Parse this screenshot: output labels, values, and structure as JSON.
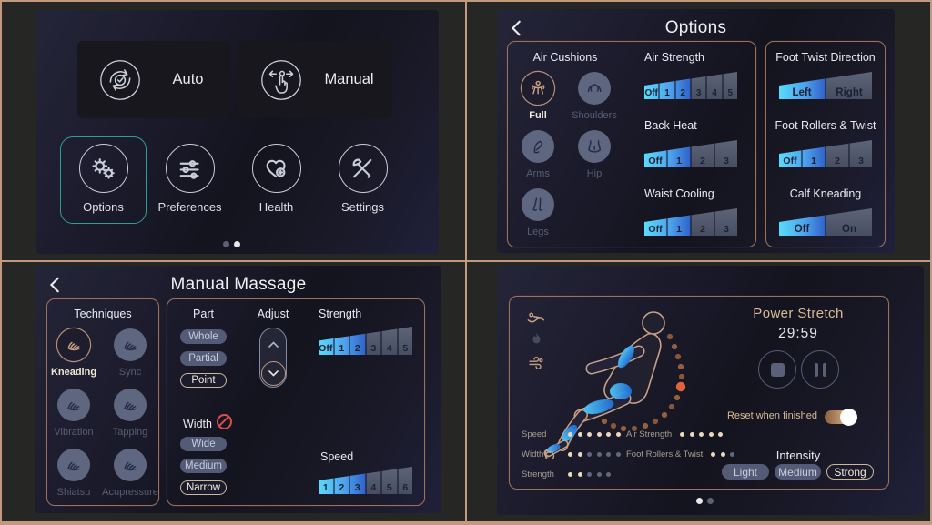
{
  "home": {
    "auto": {
      "label": "Auto",
      "icon": "auto-icon"
    },
    "manual": {
      "label": "Manual",
      "icon": "manual-icon"
    },
    "menu": [
      {
        "label": "Options",
        "icon": "gears-icon",
        "selected": true
      },
      {
        "label": "Preferences",
        "icon": "sliders-icon",
        "selected": false
      },
      {
        "label": "Health",
        "icon": "heart-plus-icon",
        "selected": false
      },
      {
        "label": "Settings",
        "icon": "tools-icon",
        "selected": false
      }
    ],
    "page_dots": {
      "count": 2,
      "active": 1
    }
  },
  "options": {
    "title": "Options",
    "air_cushions": {
      "title": "Air Cushions",
      "items": [
        {
          "label": "Full",
          "icon": "full-body-icon",
          "selected": true
        },
        {
          "label": "Shoulders",
          "icon": "shoulders-icon",
          "selected": false
        },
        {
          "label": "Arms",
          "icon": "arm-icon",
          "selected": false
        },
        {
          "label": "Hip",
          "icon": "hip-icon",
          "selected": false
        },
        {
          "label": "Legs",
          "icon": "legs-icon",
          "selected": false
        }
      ]
    },
    "middle_sliders": [
      {
        "label": "Air Strength",
        "segments": [
          "Off",
          "1",
          "2",
          "3",
          "4",
          "5"
        ],
        "filled": 3
      },
      {
        "label": "Back Heat",
        "segments": [
          "Off",
          "1",
          "2",
          "3"
        ],
        "filled": 2
      },
      {
        "label": "Waist Cooling",
        "segments": [
          "Off",
          "1",
          "2",
          "3"
        ],
        "filled": 2
      }
    ],
    "right_sliders": [
      {
        "label": "Foot Twist Direction",
        "segments": [
          "Left",
          "Right"
        ],
        "filled": 1
      },
      {
        "label": "Foot Rollers & Twist",
        "segments": [
          "Off",
          "1",
          "2",
          "3"
        ],
        "filled": 2
      },
      {
        "label": "Calf Kneading",
        "segments": [
          "Off",
          "On"
        ],
        "filled": 1
      }
    ]
  },
  "manual_massage": {
    "title": "Manual Massage",
    "techniques": {
      "title": "Techniques",
      "items": [
        {
          "label": "Kneading",
          "icon": "kneading-hands-icon",
          "selected": true
        },
        {
          "label": "Sync",
          "icon": "sync-hands-icon",
          "selected": false
        },
        {
          "label": "Vibration",
          "icon": "vibration-hands-icon",
          "selected": false
        },
        {
          "label": "Tapping",
          "icon": "tapping-hands-icon",
          "selected": false
        },
        {
          "label": "Shiatsu",
          "icon": "shiatsu-hands-icon",
          "selected": false
        },
        {
          "label": "Acupressure",
          "icon": "acupressure-hands-icon",
          "selected": false
        }
      ]
    },
    "part": {
      "title": "Part",
      "options": [
        {
          "label": "Whole",
          "selected": false
        },
        {
          "label": "Partial",
          "selected": false
        },
        {
          "label": "Point",
          "selected": true
        }
      ]
    },
    "adjust": {
      "title": "Adjust"
    },
    "strength": {
      "label": "Strength",
      "segments": [
        "Off",
        "1",
        "2",
        "3",
        "4",
        "5"
      ],
      "filled": 3
    },
    "width": {
      "title": "Width",
      "disabled": true,
      "options": [
        {
          "label": "Wide",
          "selected": false
        },
        {
          "label": "Medium",
          "selected": false
        },
        {
          "label": "Narrow",
          "selected": true
        }
      ]
    },
    "speed": {
      "label": "Speed",
      "segments": [
        "1",
        "2",
        "3",
        "4",
        "5",
        "6"
      ],
      "filled": 3
    }
  },
  "power_stretch": {
    "title": "Power Stretch",
    "timer": "29:59",
    "reset": {
      "label": "Reset when finished",
      "on": true
    },
    "intensity": {
      "title": "Intensity",
      "options": [
        {
          "label": "Light",
          "selected": false
        },
        {
          "label": "Medium",
          "selected": false
        },
        {
          "label": "Strong",
          "selected": true
        }
      ]
    },
    "status_left": [
      {
        "label": "Speed",
        "total": 6,
        "lit": 6
      },
      {
        "label": "Width",
        "total": 6,
        "lit": 2
      },
      {
        "label": "Strength",
        "total": 5,
        "lit": 2
      }
    ],
    "status_mid": [
      {
        "label": "Air Strength",
        "total": 5,
        "lit": 5
      },
      {
        "label": "Foot Rollers & Twist",
        "total": 3,
        "lit": 2
      }
    ],
    "side_icons": [
      "recline-icon",
      "heat-icon",
      "air-icon"
    ],
    "page_dots": {
      "count": 2,
      "active": 0
    }
  },
  "colors": {
    "accent_tan": "#c9a083",
    "accent_teal": "#2f9f95",
    "slider_cyan": "#58dbfc",
    "slider_blue": "#2e62c9",
    "dot_lit": "#ecd9bb",
    "dot_dim": "#62677e",
    "alert_red": "#d94f4f"
  }
}
